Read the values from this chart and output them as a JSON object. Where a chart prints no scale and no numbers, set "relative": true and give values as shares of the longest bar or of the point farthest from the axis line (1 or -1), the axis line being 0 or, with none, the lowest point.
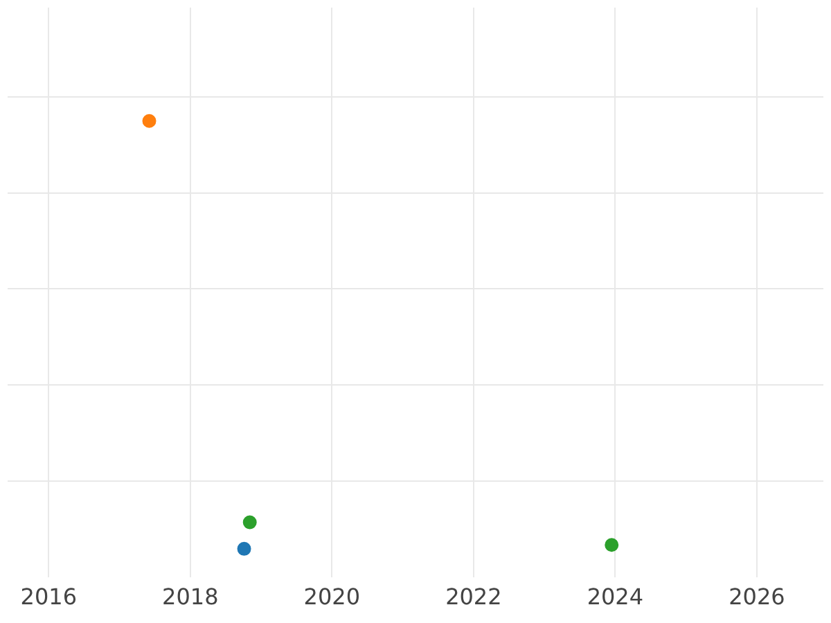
{
  "chart_data": {
    "type": "scatter",
    "relative": true,
    "grid": true,
    "marker": "circle",
    "xlim": [
      2015.42,
      2026.94
    ],
    "xticks": [
      2016,
      2018,
      2020,
      2022,
      2024,
      2026
    ],
    "series": [
      {
        "color": "#1f77b4",
        "x": [
          2018.76
        ],
        "values": [
          0
        ]
      },
      {
        "color": "#ff7f0e",
        "x": [
          2017.42
        ],
        "values": [
          1
        ]
      },
      {
        "color": "#2ca02c",
        "x": [
          2018.84,
          2023.95
        ],
        "values": [
          0.062,
          0.009
        ]
      }
    ]
  }
}
